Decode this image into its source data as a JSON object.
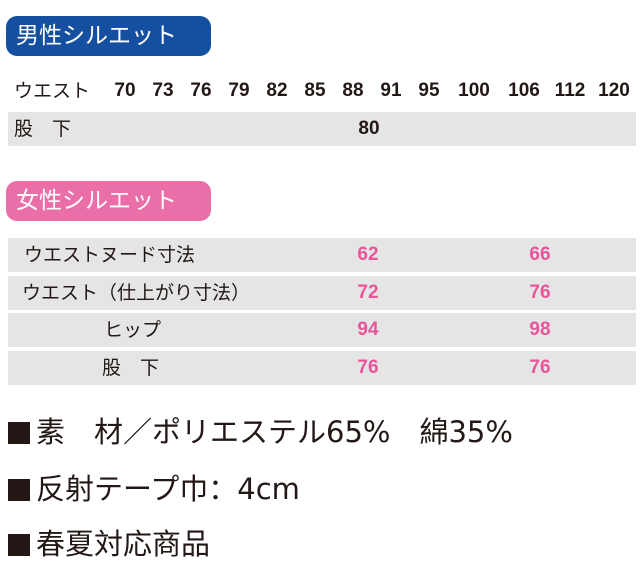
{
  "men": {
    "badge": "男性シルエット",
    "waist_label": "ウエスト",
    "waist_sizes": [
      "70",
      "73",
      "76",
      "79",
      "82",
      "85",
      "88",
      "91",
      "95",
      "100",
      "106",
      "112",
      "120"
    ],
    "inseam_label": "股　下",
    "inseam_value": "80"
  },
  "women": {
    "badge": "女性シルエット",
    "rows": [
      {
        "label": "ウエストヌード寸法",
        "a": "62",
        "b": "66"
      },
      {
        "label": "ウエスト（仕上がり寸法）",
        "a": "72",
        "b": "76"
      },
      {
        "label": "ヒップ",
        "a": "94",
        "b": "98"
      },
      {
        "label": "股　下",
        "a": "76",
        "b": "76"
      }
    ]
  },
  "info": {
    "material": "素　材／ポリエステル65%　綿35%",
    "reflective": "反射テープ巾：4cm",
    "season": "春夏対応商品"
  },
  "colors": {
    "men_badge": "#1550a0",
    "women_badge": "#ea6fa8",
    "women_values": "#e8559a",
    "row_shade": "#e5e5e5"
  }
}
